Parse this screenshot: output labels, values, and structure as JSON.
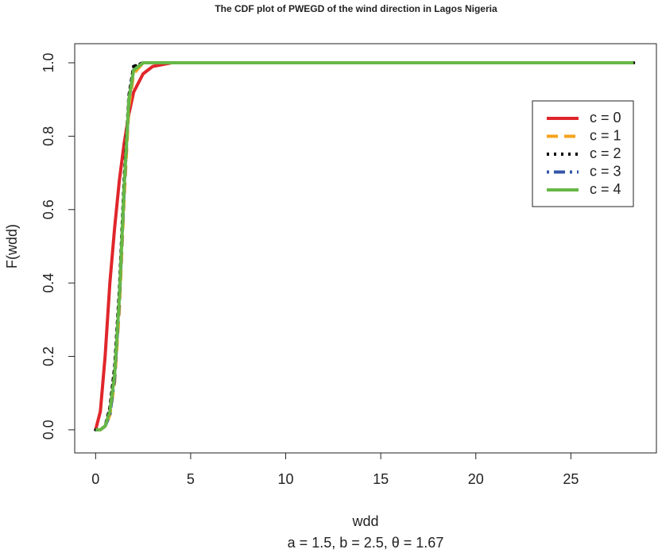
{
  "chart_data": {
    "type": "line",
    "title": "The CDF plot of PWEGD of the wind direction in Lagos Nigeria",
    "x_label": "wdd",
    "subtitle": "a = 1.5, b = 2.5, θ = 1.67",
    "y_label": "F(wdd)",
    "x": [
      0,
      0.25,
      0.5,
      0.75,
      1,
      1.25,
      1.5,
      1.75,
      2,
      2.5,
      3,
      4,
      5,
      10,
      15,
      20,
      25,
      28.3
    ],
    "series": [
      {
        "name": "c = 0",
        "color": "#e0262b",
        "linetype": "solid",
        "values": [
          0,
          0.05,
          0.2,
          0.4,
          0.55,
          0.68,
          0.78,
          0.86,
          0.92,
          0.97,
          0.99,
          1,
          1,
          1,
          1,
          1,
          1,
          1
        ]
      },
      {
        "name": "c = 1",
        "color": "#f7a21b",
        "linetype": "dashed",
        "values": [
          0,
          0,
          0.01,
          0.04,
          0.13,
          0.33,
          0.63,
          0.88,
          0.97,
          1,
          1,
          1,
          1,
          1,
          1,
          1,
          1,
          1
        ]
      },
      {
        "name": "c = 2",
        "color": "#000000",
        "linetype": "dotted",
        "values": [
          0,
          0,
          0.01,
          0.06,
          0.17,
          0.38,
          0.68,
          0.91,
          0.99,
          1,
          1,
          1,
          1,
          1,
          1,
          1,
          1,
          1
        ]
      },
      {
        "name": "c = 3",
        "color": "#3355aa",
        "linetype": "dotdash",
        "values": [
          0,
          0,
          0.01,
          0.04,
          0.14,
          0.35,
          0.65,
          0.9,
          0.98,
          1,
          1,
          1,
          1,
          1,
          1,
          1,
          1,
          1
        ]
      },
      {
        "name": "c = 4",
        "color": "#66b845",
        "linetype": "solid",
        "values": [
          0,
          0,
          0.01,
          0.05,
          0.15,
          0.36,
          0.66,
          0.9,
          0.98,
          1,
          1,
          1,
          1,
          1,
          1,
          1,
          1,
          1
        ]
      }
    ],
    "xlim": [
      -1.1,
      29.5
    ],
    "xticks": [
      0,
      5,
      10,
      15,
      20,
      25
    ],
    "ylim": [
      -0.063,
      1.052
    ],
    "yticks": [
      {
        "value": 0,
        "label": "0.0"
      },
      0.2,
      0.4,
      0.6,
      0.8,
      {
        "value": 1,
        "label": "1.0"
      }
    ],
    "grid": false,
    "legend": "upper-right"
  }
}
